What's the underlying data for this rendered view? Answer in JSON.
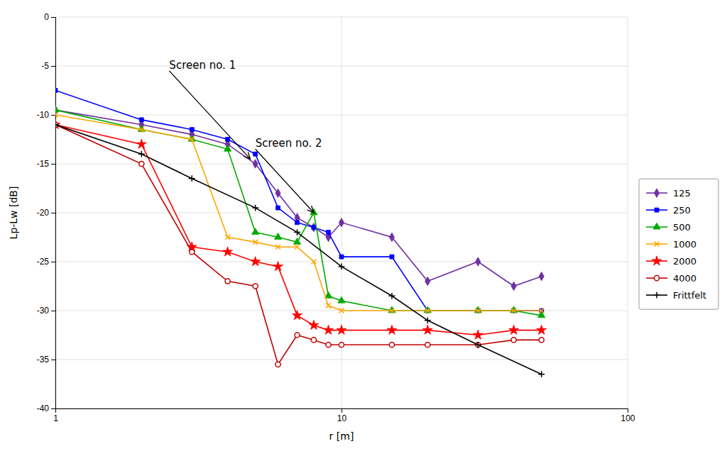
{
  "chart_data": {
    "type": "line",
    "xlabel": "r [m]",
    "ylabel": "Lp-Lw [dB]",
    "log": "x",
    "grid": true,
    "legend": "right",
    "xlim": [
      1.0,
      100.0
    ],
    "xticks": [
      1,
      10,
      100
    ],
    "ylim": [
      -40,
      0
    ],
    "yticks": [
      0,
      -5,
      -10,
      -15,
      -20,
      -25,
      -30,
      -35,
      -40
    ],
    "series": [
      {
        "name": "125",
        "color": "#7030A0",
        "marker": "diamond",
        "x": [
          1.0,
          2.0,
          3.0,
          4.0,
          5.0,
          6.0,
          7.0,
          8.0,
          9.0,
          10.0,
          15.0,
          20.0,
          30.0,
          40.0,
          50.0
        ],
        "values": [
          -9.5,
          -11.0,
          -12.0,
          -13.0,
          -15.0,
          -18.0,
          -20.5,
          -21.5,
          -22.5,
          -21.0,
          -22.5,
          -27.0,
          -25.0,
          -27.5,
          -26.5
        ]
      },
      {
        "name": "250",
        "color": "#0000FF",
        "marker": "square",
        "x": [
          1.0,
          2.0,
          3.0,
          4.0,
          5.0,
          6.0,
          7.0,
          8.0,
          9.0,
          10.0,
          15.0,
          20.0,
          30.0,
          40.0,
          50.0
        ],
        "values": [
          -7.5,
          -10.5,
          -11.5,
          -12.5,
          -14.0,
          -19.5,
          -21.0,
          -21.5,
          -22.0,
          -24.5,
          -24.5,
          -30.0,
          -30.0,
          -30.0,
          -30.0
        ]
      },
      {
        "name": "500",
        "color": "#00AA00",
        "marker": "triangle",
        "x": [
          1.0,
          2.0,
          3.0,
          4.0,
          5.0,
          6.0,
          7.0,
          8.0,
          9.0,
          10.0,
          15.0,
          20.0,
          30.0,
          40.0,
          50.0
        ],
        "values": [
          -9.5,
          -11.5,
          -12.5,
          -13.5,
          -22.0,
          -22.5,
          -23.0,
          -20.0,
          -28.5,
          -29.0,
          -30.0,
          -30.0,
          -30.0,
          -30.0,
          -30.5
        ]
      },
      {
        "name": "1000",
        "color": "#FFA500",
        "marker": "x",
        "x": [
          1.0,
          2.0,
          3.0,
          4.0,
          5.0,
          6.0,
          7.0,
          8.0,
          9.0,
          10.0,
          15.0,
          20.0,
          30.0,
          40.0,
          50.0
        ],
        "values": [
          -10.0,
          -11.5,
          -12.5,
          -22.5,
          -23.0,
          -23.5,
          -23.5,
          -25.0,
          -29.5,
          -30.0,
          -30.0,
          -30.0,
          -30.0,
          -30.0,
          -30.0
        ]
      },
      {
        "name": "2000",
        "color": "#FF0000",
        "marker": "star",
        "x": [
          1.0,
          2.0,
          3.0,
          4.0,
          5.0,
          6.0,
          7.0,
          8.0,
          9.0,
          10.0,
          15.0,
          20.0,
          30.0,
          40.0,
          50.0
        ],
        "values": [
          -11.0,
          -13.0,
          -23.5,
          -24.0,
          -25.0,
          -25.5,
          -30.5,
          -31.5,
          -32.0,
          -32.0,
          -32.0,
          -32.0,
          -32.5,
          -32.0,
          -32.0
        ]
      },
      {
        "name": "4000",
        "color": "#C00000",
        "marker": "circle-open",
        "x": [
          1.0,
          2.0,
          3.0,
          4.0,
          5.0,
          6.0,
          7.0,
          8.0,
          9.0,
          10.0,
          15.0,
          20.0,
          30.0,
          40.0,
          50.0
        ],
        "values": [
          -11.0,
          -15.0,
          -24.0,
          -27.0,
          -27.5,
          -35.5,
          -32.5,
          -33.0,
          -33.5,
          -33.5,
          -33.5,
          -33.5,
          -33.5,
          -33.0,
          -33.0
        ]
      },
      {
        "name": "Frittfelt",
        "color": "#000000",
        "marker": "plus",
        "x": [
          1.0,
          2.0,
          3.0,
          5.0,
          7.0,
          10.0,
          15.0,
          20.0,
          30.0,
          50.0
        ],
        "values": [
          -11.0,
          -14.0,
          -16.5,
          -19.5,
          -22.0,
          -25.5,
          -28.5,
          -31.0,
          -33.5,
          -36.5
        ]
      }
    ],
    "annotations": [
      {
        "text": "Screen no. 1",
        "x": 4.8,
        "y": -14.5,
        "text_x": 2.5,
        "text_y": -5.5
      },
      {
        "text": "Screen no. 2",
        "x": 8.0,
        "y": -20.0,
        "text_x": 5.0,
        "text_y": -13.5
      }
    ]
  }
}
